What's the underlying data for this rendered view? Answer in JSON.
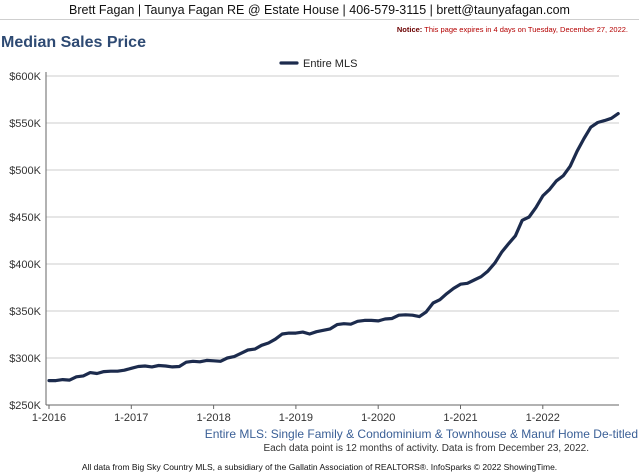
{
  "header": {
    "contact": "Brett Fagan | Taunya Fagan RE @ Estate House | 406-579-3115 | brett@taunyafagan.com"
  },
  "notice": {
    "label": "Notice:",
    "text": " This page expires in 4 days on Tuesday, December 27, 2022."
  },
  "chart_data": {
    "type": "line",
    "title": "Median Sales Price",
    "subtitle": "Entire MLS: Single Family & Condominium & Townhouse & Manuf Home De-titled",
    "xlabel": "",
    "ylabel": "",
    "x_tick_labels": [
      "1-2016",
      "1-2017",
      "1-2018",
      "1-2019",
      "1-2020",
      "1-2021",
      "1-2022"
    ],
    "y_tick_labels": [
      "$250K",
      "$300K",
      "$350K",
      "$400K",
      "$450K",
      "$500K",
      "$550K",
      "$600K"
    ],
    "y_ticks": [
      250000,
      300000,
      350000,
      400000,
      450000,
      500000,
      550000,
      600000
    ],
    "ylim": [
      250000,
      600000
    ],
    "x_start": "1-2016",
    "x_end": "12-2022",
    "grid": true,
    "legend": "top-center",
    "series": [
      {
        "name": "Entire MLS",
        "color": "#1c2b4d",
        "values": [
          276000,
          276000,
          277000,
          276500,
          280000,
          281000,
          284500,
          283500,
          285500,
          286000,
          286000,
          287000,
          289000,
          291000,
          291500,
          290500,
          292000,
          291500,
          290500,
          291000,
          295500,
          296500,
          296000,
          297500,
          297000,
          296500,
          300000,
          301500,
          305000,
          308500,
          309500,
          313500,
          316000,
          320000,
          325500,
          326500,
          326500,
          327500,
          325500,
          328000,
          329500,
          331000,
          335500,
          336500,
          336000,
          339000,
          340000,
          340000,
          339500,
          341500,
          342000,
          345500,
          346000,
          345500,
          344000,
          349000,
          358500,
          362000,
          368500,
          374000,
          378500,
          379500,
          383000,
          386500,
          392500,
          401000,
          412500,
          421500,
          430000,
          446500,
          450000,
          460000,
          472500,
          479500,
          488500,
          494000,
          504000,
          520000,
          533500,
          545500,
          550500,
          552500,
          555000,
          560000
        ]
      }
    ]
  },
  "footnote": "Each data point is 12 months of activity. Data is from December 23, 2022.",
  "footer": "All data from Big Sky Country MLS, a subsidiary of the Gallatin Association of REALTORS®. InfoSparks © 2022 ShowingTime."
}
